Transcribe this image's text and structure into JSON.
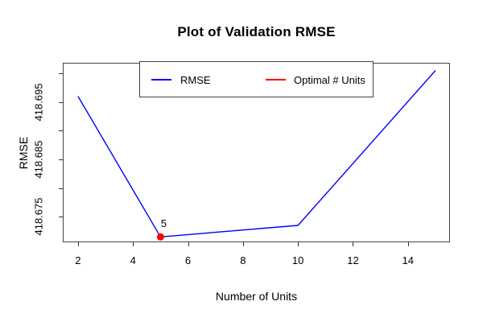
{
  "title": "Plot of Validation RMSE",
  "legend": {
    "items": [
      {
        "label": "RMSE",
        "color": "#0000ff"
      },
      {
        "label": "Optimal # Units",
        "color": "#ff0000"
      }
    ]
  },
  "annotation": {
    "label": "5"
  },
  "chart_data": {
    "type": "line",
    "title": "Plot of Validation RMSE",
    "xlabel": "Number of Units",
    "ylabel": "RMSE",
    "x": [
      2,
      5,
      10,
      15
    ],
    "series": [
      {
        "name": "RMSE",
        "color": "#0000ff",
        "values": [
          418.696,
          418.6715,
          418.6735,
          418.7005
        ]
      }
    ],
    "optimal_point": {
      "x": 5,
      "y": 418.6715,
      "label": "5",
      "color": "#ff0000"
    },
    "xlim": [
      1.475,
      15.5
    ],
    "ylim": [
      418.6707,
      418.7017
    ],
    "x_ticks": [
      2,
      4,
      6,
      8,
      10,
      12,
      14
    ],
    "x_tick_labels": [
      "2",
      "4",
      "6",
      "8",
      "10",
      "12",
      "14"
    ],
    "y_ticks": [
      418.675,
      418.68,
      418.685,
      418.69,
      418.695,
      418.7
    ],
    "y_tick_labels": [
      "418.675",
      "",
      "418.685",
      "",
      "418.695",
      ""
    ],
    "grid": false,
    "legend_position": "top-center"
  }
}
